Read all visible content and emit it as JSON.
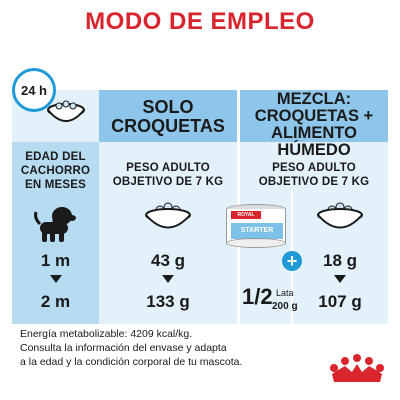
{
  "title": "MODO DE EMPLEO",
  "clock_label": "24 h",
  "section_dry": {
    "heading_line1": "SOLO",
    "heading_line2": "CROQUETAS",
    "age_label": [
      "EDAD DEL",
      "CACHORRO",
      "EN MESES"
    ],
    "weight_label": [
      "PESO ADULTO",
      "OBJETIVO DE 7 KG"
    ],
    "rows": [
      {
        "age": "1 m",
        "amount": "43 g"
      },
      {
        "age": "2 m",
        "amount": "133 g"
      }
    ]
  },
  "section_mix": {
    "heading_line1": "MEZCLA:",
    "heading_line2": "CROQUETAS +",
    "heading_line3": "ALIMENTO HÚMEDO",
    "weight_label": [
      "PESO ADULTO",
      "OBJETIVO DE 7 KG"
    ],
    "can_brand": "ROYAL CANIN",
    "can_product": "STARTER",
    "can_fraction": "1/2",
    "can_unit": "Lata",
    "can_weight": "200 g",
    "kibble_rows": [
      "18 g",
      "107 g"
    ],
    "plus": "+"
  },
  "footer": {
    "line1": "Energía metabolizable: 4209 kcal/kg.",
    "line2": "Consulta la información del envase y adapta",
    "line3": "a la edad y la condición corporal de tu mascota."
  },
  "colors": {
    "title_red": "#d8252e",
    "accent_blue": "#1f9ad6",
    "header_blue": "#8dc6ea",
    "panel_blue": "#b7dcf2",
    "panel_light": "#e3f1fa"
  }
}
